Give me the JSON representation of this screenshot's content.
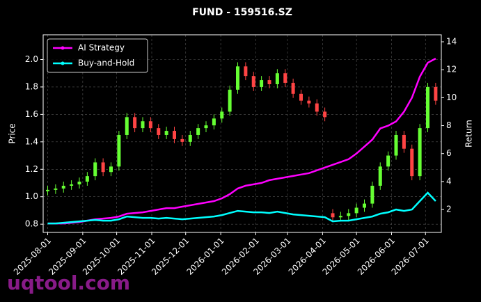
{
  "chart_data": {
    "type": "candlestick",
    "title": "FUND - 159516.SZ",
    "y_label": "Price",
    "y2_label": "Return",
    "watermark": "uqtool.com",
    "grid": true,
    "legend": "upper left",
    "up_color": "#66ff33",
    "down_color": "#ff4444",
    "xlim": [
      "2025-07-28",
      "2026-07-15"
    ],
    "xticks": [
      "2025-08-01",
      "2025-09-01",
      "2025-10-01",
      "2025-11-01",
      "2025-12-01",
      "2026-01-01",
      "2026-02-01",
      "2026-03-01",
      "2026-04-01",
      "2026-05-01",
      "2026-06-01",
      "2026-07-01"
    ],
    "ylim": [
      0.74,
      2.18
    ],
    "yticks": [
      0.8,
      {
        "value": 1.0,
        "label": "1.0"
      },
      1.2,
      1.4,
      1.6,
      1.8,
      {
        "value": 2.0,
        "label": "2.0"
      }
    ],
    "y2lim": [
      0.36,
      14.5
    ],
    "y2ticks": [
      2,
      4,
      6,
      8,
      10,
      12,
      14
    ],
    "x": [
      "2025-08-01",
      "2025-08-08",
      "2025-08-15",
      "2025-08-22",
      "2025-08-29",
      "2025-09-05",
      "2025-09-12",
      "2025-09-19",
      "2025-09-26",
      "2025-10-03",
      "2025-10-10",
      "2025-10-17",
      "2025-10-24",
      "2025-10-31",
      "2025-11-07",
      "2025-11-14",
      "2025-11-21",
      "2025-11-28",
      "2025-12-05",
      "2025-12-12",
      "2025-12-19",
      "2025-12-26",
      "2026-01-02",
      "2026-01-09",
      "2026-01-16",
      "2026-01-23",
      "2026-01-30",
      "2026-02-06",
      "2026-02-13",
      "2026-02-20",
      "2026-02-27",
      "2026-03-06",
      "2026-03-13",
      "2026-03-20",
      "2026-03-27",
      "2026-04-03",
      "2026-04-10",
      "2026-04-17",
      "2026-04-24",
      "2026-05-01",
      "2026-05-08",
      "2026-05-15",
      "2026-05-22",
      "2026-05-29",
      "2026-06-05",
      "2026-06-12",
      "2026-06-19",
      "2026-06-26",
      "2026-07-03",
      "2026-07-10"
    ],
    "open": [
      1.04,
      1.05,
      1.06,
      1.08,
      1.09,
      1.11,
      1.15,
      1.25,
      1.18,
      1.22,
      1.45,
      1.58,
      1.5,
      1.55,
      1.5,
      1.45,
      1.48,
      1.42,
      1.4,
      1.45,
      1.5,
      1.52,
      1.57,
      1.62,
      1.78,
      1.95,
      1.88,
      1.8,
      1.85,
      1.82,
      1.9,
      1.83,
      1.75,
      1.7,
      1.68,
      1.62,
      0.88,
      0.85,
      0.86,
      0.88,
      0.92,
      0.95,
      1.08,
      1.22,
      1.3,
      1.45,
      1.35,
      1.15,
      1.5,
      1.8
    ],
    "high": [
      1.08,
      1.09,
      1.11,
      1.12,
      1.14,
      1.18,
      1.28,
      1.28,
      1.25,
      1.48,
      1.61,
      1.61,
      1.58,
      1.58,
      1.53,
      1.51,
      1.51,
      1.45,
      1.48,
      1.53,
      1.55,
      1.6,
      1.65,
      1.81,
      1.98,
      1.98,
      1.91,
      1.88,
      1.88,
      1.93,
      1.93,
      1.86,
      1.78,
      1.73,
      1.71,
      1.65,
      0.91,
      0.89,
      0.91,
      0.95,
      0.98,
      1.11,
      1.25,
      1.33,
      1.48,
      1.48,
      1.38,
      1.53,
      1.83,
      1.83
    ],
    "low": [
      1.01,
      1.02,
      1.03,
      1.05,
      1.06,
      1.08,
      1.12,
      1.15,
      1.15,
      1.19,
      1.42,
      1.47,
      1.47,
      1.47,
      1.42,
      1.42,
      1.39,
      1.37,
      1.37,
      1.42,
      1.47,
      1.49,
      1.54,
      1.59,
      1.75,
      1.85,
      1.77,
      1.77,
      1.79,
      1.79,
      1.8,
      1.72,
      1.67,
      1.65,
      1.59,
      1.55,
      0.82,
      0.82,
      0.83,
      0.85,
      0.89,
      0.92,
      1.05,
      1.19,
      1.27,
      1.32,
      1.12,
      1.12,
      1.47,
      1.67
    ],
    "close": [
      1.05,
      1.06,
      1.08,
      1.09,
      1.11,
      1.15,
      1.25,
      1.18,
      1.22,
      1.45,
      1.58,
      1.5,
      1.55,
      1.5,
      1.45,
      1.48,
      1.42,
      1.4,
      1.45,
      1.5,
      1.52,
      1.57,
      1.62,
      1.78,
      1.95,
      1.88,
      1.8,
      1.85,
      1.82,
      1.9,
      1.83,
      1.75,
      1.7,
      1.68,
      1.62,
      1.58,
      0.85,
      0.86,
      0.88,
      0.92,
      0.95,
      1.08,
      1.22,
      1.3,
      1.45,
      1.35,
      1.15,
      1.5,
      1.8,
      1.7
    ],
    "series": [
      {
        "name": "AI Strategy",
        "color": "#ff00ff",
        "axis": "y2",
        "values": [
          1.0,
          1.0,
          1.0,
          1.05,
          1.1,
          1.2,
          1.3,
          1.35,
          1.4,
          1.5,
          1.7,
          1.75,
          1.8,
          1.9,
          2.0,
          2.1,
          2.1,
          2.2,
          2.3,
          2.4,
          2.5,
          2.6,
          2.8,
          3.1,
          3.5,
          3.7,
          3.8,
          3.9,
          4.1,
          4.2,
          4.3,
          4.4,
          4.5,
          4.6,
          4.8,
          5.0,
          5.2,
          5.4,
          5.6,
          6.0,
          6.5,
          7.0,
          7.8,
          8.0,
          8.3,
          9.0,
          10.0,
          11.5,
          12.5,
          12.8
        ]
      },
      {
        "name": "Buy-and-Hold",
        "color": "#00ffff",
        "axis": "y2",
        "values": [
          1.0,
          1.0,
          1.05,
          1.1,
          1.15,
          1.2,
          1.25,
          1.2,
          1.2,
          1.3,
          1.5,
          1.45,
          1.4,
          1.4,
          1.35,
          1.4,
          1.35,
          1.3,
          1.35,
          1.4,
          1.45,
          1.5,
          1.6,
          1.75,
          1.9,
          1.85,
          1.8,
          1.8,
          1.75,
          1.85,
          1.75,
          1.65,
          1.6,
          1.55,
          1.5,
          1.45,
          1.15,
          1.2,
          1.2,
          1.3,
          1.4,
          1.5,
          1.7,
          1.8,
          2.0,
          1.9,
          2.0,
          2.6,
          3.2,
          2.6
        ]
      }
    ]
  }
}
